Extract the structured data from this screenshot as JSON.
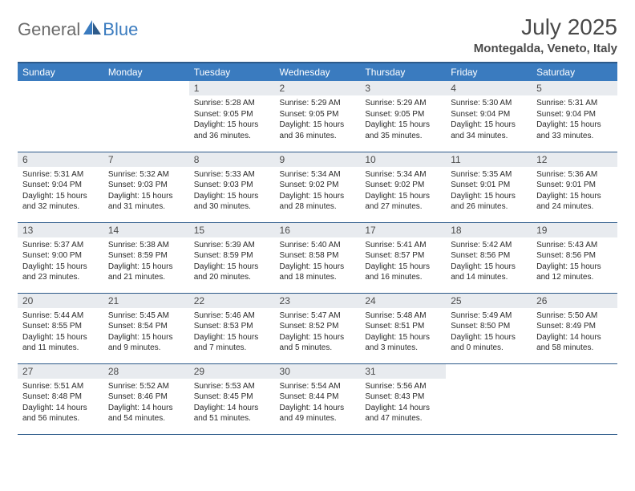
{
  "logo": {
    "general": "General",
    "blue": "Blue"
  },
  "title": "July 2025",
  "location": "Montegalda, Veneto, Italy",
  "colors": {
    "header_bg": "#3a7bbf",
    "header_border": "#2d5a8a",
    "daynum_bg": "#e8ebef",
    "text": "#4a4a4a"
  },
  "weekdays": [
    "Sunday",
    "Monday",
    "Tuesday",
    "Wednesday",
    "Thursday",
    "Friday",
    "Saturday"
  ],
  "weeks": [
    [
      null,
      null,
      {
        "n": "1",
        "sr": "Sunrise: 5:28 AM",
        "ss": "Sunset: 9:05 PM",
        "dl": "Daylight: 15 hours and 36 minutes."
      },
      {
        "n": "2",
        "sr": "Sunrise: 5:29 AM",
        "ss": "Sunset: 9:05 PM",
        "dl": "Daylight: 15 hours and 36 minutes."
      },
      {
        "n": "3",
        "sr": "Sunrise: 5:29 AM",
        "ss": "Sunset: 9:05 PM",
        "dl": "Daylight: 15 hours and 35 minutes."
      },
      {
        "n": "4",
        "sr": "Sunrise: 5:30 AM",
        "ss": "Sunset: 9:04 PM",
        "dl": "Daylight: 15 hours and 34 minutes."
      },
      {
        "n": "5",
        "sr": "Sunrise: 5:31 AM",
        "ss": "Sunset: 9:04 PM",
        "dl": "Daylight: 15 hours and 33 minutes."
      }
    ],
    [
      {
        "n": "6",
        "sr": "Sunrise: 5:31 AM",
        "ss": "Sunset: 9:04 PM",
        "dl": "Daylight: 15 hours and 32 minutes."
      },
      {
        "n": "7",
        "sr": "Sunrise: 5:32 AM",
        "ss": "Sunset: 9:03 PM",
        "dl": "Daylight: 15 hours and 31 minutes."
      },
      {
        "n": "8",
        "sr": "Sunrise: 5:33 AM",
        "ss": "Sunset: 9:03 PM",
        "dl": "Daylight: 15 hours and 30 minutes."
      },
      {
        "n": "9",
        "sr": "Sunrise: 5:34 AM",
        "ss": "Sunset: 9:02 PM",
        "dl": "Daylight: 15 hours and 28 minutes."
      },
      {
        "n": "10",
        "sr": "Sunrise: 5:34 AM",
        "ss": "Sunset: 9:02 PM",
        "dl": "Daylight: 15 hours and 27 minutes."
      },
      {
        "n": "11",
        "sr": "Sunrise: 5:35 AM",
        "ss": "Sunset: 9:01 PM",
        "dl": "Daylight: 15 hours and 26 minutes."
      },
      {
        "n": "12",
        "sr": "Sunrise: 5:36 AM",
        "ss": "Sunset: 9:01 PM",
        "dl": "Daylight: 15 hours and 24 minutes."
      }
    ],
    [
      {
        "n": "13",
        "sr": "Sunrise: 5:37 AM",
        "ss": "Sunset: 9:00 PM",
        "dl": "Daylight: 15 hours and 23 minutes."
      },
      {
        "n": "14",
        "sr": "Sunrise: 5:38 AM",
        "ss": "Sunset: 8:59 PM",
        "dl": "Daylight: 15 hours and 21 minutes."
      },
      {
        "n": "15",
        "sr": "Sunrise: 5:39 AM",
        "ss": "Sunset: 8:59 PM",
        "dl": "Daylight: 15 hours and 20 minutes."
      },
      {
        "n": "16",
        "sr": "Sunrise: 5:40 AM",
        "ss": "Sunset: 8:58 PM",
        "dl": "Daylight: 15 hours and 18 minutes."
      },
      {
        "n": "17",
        "sr": "Sunrise: 5:41 AM",
        "ss": "Sunset: 8:57 PM",
        "dl": "Daylight: 15 hours and 16 minutes."
      },
      {
        "n": "18",
        "sr": "Sunrise: 5:42 AM",
        "ss": "Sunset: 8:56 PM",
        "dl": "Daylight: 15 hours and 14 minutes."
      },
      {
        "n": "19",
        "sr": "Sunrise: 5:43 AM",
        "ss": "Sunset: 8:56 PM",
        "dl": "Daylight: 15 hours and 12 minutes."
      }
    ],
    [
      {
        "n": "20",
        "sr": "Sunrise: 5:44 AM",
        "ss": "Sunset: 8:55 PM",
        "dl": "Daylight: 15 hours and 11 minutes."
      },
      {
        "n": "21",
        "sr": "Sunrise: 5:45 AM",
        "ss": "Sunset: 8:54 PM",
        "dl": "Daylight: 15 hours and 9 minutes."
      },
      {
        "n": "22",
        "sr": "Sunrise: 5:46 AM",
        "ss": "Sunset: 8:53 PM",
        "dl": "Daylight: 15 hours and 7 minutes."
      },
      {
        "n": "23",
        "sr": "Sunrise: 5:47 AM",
        "ss": "Sunset: 8:52 PM",
        "dl": "Daylight: 15 hours and 5 minutes."
      },
      {
        "n": "24",
        "sr": "Sunrise: 5:48 AM",
        "ss": "Sunset: 8:51 PM",
        "dl": "Daylight: 15 hours and 3 minutes."
      },
      {
        "n": "25",
        "sr": "Sunrise: 5:49 AM",
        "ss": "Sunset: 8:50 PM",
        "dl": "Daylight: 15 hours and 0 minutes."
      },
      {
        "n": "26",
        "sr": "Sunrise: 5:50 AM",
        "ss": "Sunset: 8:49 PM",
        "dl": "Daylight: 14 hours and 58 minutes."
      }
    ],
    [
      {
        "n": "27",
        "sr": "Sunrise: 5:51 AM",
        "ss": "Sunset: 8:48 PM",
        "dl": "Daylight: 14 hours and 56 minutes."
      },
      {
        "n": "28",
        "sr": "Sunrise: 5:52 AM",
        "ss": "Sunset: 8:46 PM",
        "dl": "Daylight: 14 hours and 54 minutes."
      },
      {
        "n": "29",
        "sr": "Sunrise: 5:53 AM",
        "ss": "Sunset: 8:45 PM",
        "dl": "Daylight: 14 hours and 51 minutes."
      },
      {
        "n": "30",
        "sr": "Sunrise: 5:54 AM",
        "ss": "Sunset: 8:44 PM",
        "dl": "Daylight: 14 hours and 49 minutes."
      },
      {
        "n": "31",
        "sr": "Sunrise: 5:56 AM",
        "ss": "Sunset: 8:43 PM",
        "dl": "Daylight: 14 hours and 47 minutes."
      },
      null,
      null
    ]
  ]
}
